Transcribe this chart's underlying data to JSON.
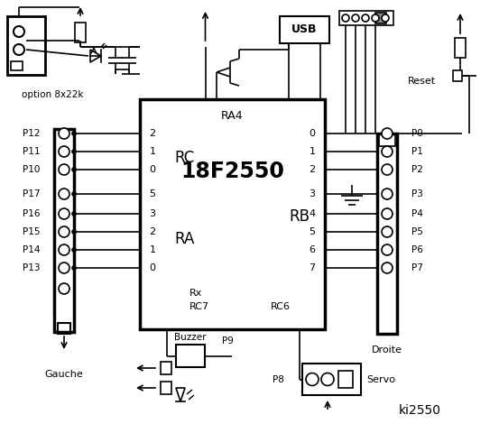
{
  "bg_color": "#ffffff",
  "line_color": "#000000",
  "chip_label": "18F2550",
  "chip_sub": "RA4",
  "RC_label": "RC",
  "RA_label": "RA",
  "RB_label": "RB",
  "Rx_label": "Rx",
  "RC7_label": "RC7",
  "RC6_label": "RC6",
  "left_labels": [
    "P12",
    "P11",
    "P10",
    "P17",
    "P16",
    "P15",
    "P14",
    "P13"
  ],
  "right_labels": [
    "P0",
    "P1",
    "P2",
    "P3",
    "P4",
    "P5",
    "P6",
    "P7"
  ],
  "left_pin_nums_RC": [
    "2",
    "1",
    "0"
  ],
  "left_pin_nums_RA": [
    "5",
    "3",
    "2",
    "1",
    "0"
  ],
  "right_pin_nums_RB": [
    "0",
    "1",
    "2",
    "3",
    "4",
    "5",
    "6",
    "7"
  ],
  "option_label": "option 8x22k",
  "usb_label": "USB",
  "reset_label": "Reset",
  "buzzer_label": "Buzzer",
  "servo_label": "Servo",
  "p9_label": "P9",
  "p8_label": "P8",
  "gauche_label": "Gauche",
  "droite_label": "Droite",
  "title": "ki2550"
}
